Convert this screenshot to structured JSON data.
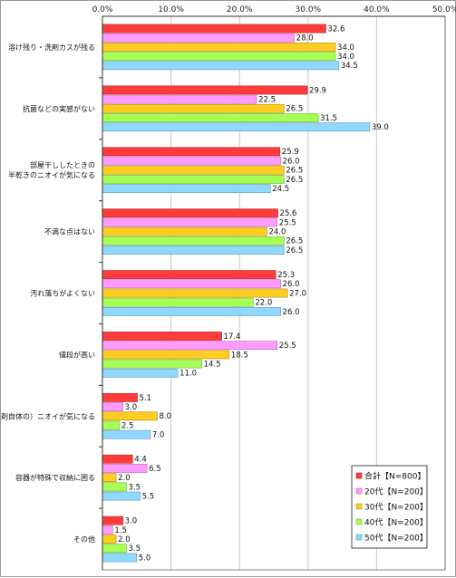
{
  "chart_data": {
    "type": "bar",
    "orientation": "horizontal",
    "xlim": [
      0,
      50
    ],
    "x_ticks": [
      "0.0%",
      "10.0%",
      "20.0%",
      "30.0%",
      "40.0%",
      "50.0%"
    ],
    "grid": true,
    "legend_position": "bottom-right",
    "categories": [
      [
        "溶け残り・洗剤カスが残る"
      ],
      [
        "抗菌などの実感がない"
      ],
      [
        "部屋干ししたときの",
        "半乾きのニオイが気になる"
      ],
      [
        "不満な点はない"
      ],
      [
        "汚れ落ちがよくない"
      ],
      [
        "値段が高い"
      ],
      [
        "（洗剤自体の）ニオイが気になる"
      ],
      [
        "容器が特殊で収納に困る"
      ],
      [
        "その他"
      ]
    ],
    "series": [
      {
        "name": "合計【N=800】",
        "color": "#ff3b3b",
        "values": [
          32.6,
          29.9,
          25.9,
          25.6,
          25.3,
          17.4,
          5.1,
          4.4,
          3.0
        ]
      },
      {
        "name": "20代【N=200】",
        "color": "#ff9bff",
        "values": [
          28.0,
          22.5,
          26.0,
          25.5,
          26.0,
          25.5,
          3.0,
          6.5,
          1.5
        ]
      },
      {
        "name": "30代【N=200】",
        "color": "#ffcc22",
        "values": [
          34.0,
          26.5,
          26.5,
          24.0,
          27.0,
          18.5,
          8.0,
          2.0,
          2.0
        ]
      },
      {
        "name": "40代【N=200】",
        "color": "#a6ff55",
        "values": [
          34.0,
          31.5,
          26.5,
          26.5,
          22.0,
          14.5,
          2.5,
          3.5,
          3.5
        ]
      },
      {
        "name": "50代【N=200】",
        "color": "#8fd8ff",
        "values": [
          34.5,
          39.0,
          24.5,
          26.5,
          26.0,
          11.0,
          7.0,
          5.5,
          5.0
        ]
      }
    ]
  }
}
